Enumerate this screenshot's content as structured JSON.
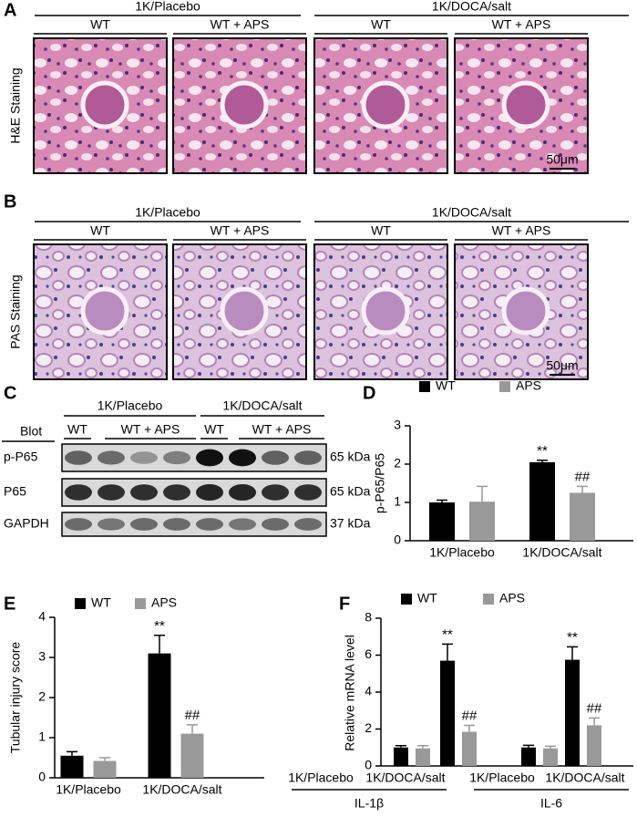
{
  "panel_labels": [
    "A",
    "B",
    "C",
    "D",
    "E",
    "F"
  ],
  "panel_a": {
    "groups": [
      "1K/Placebo",
      "1K/DOCA/salt"
    ],
    "columns": [
      "WT",
      "WT + APS",
      "WT",
      "WT + APS"
    ],
    "stain": "H&E Staining",
    "scale_bar": "50μm"
  },
  "panel_b": {
    "groups": [
      "1K/Placebo",
      "1K/DOCA/salt"
    ],
    "columns": [
      "WT",
      "WT + APS",
      "WT",
      "WT + APS"
    ],
    "stain": "PAS Staining",
    "scale_bar": "50μm"
  },
  "blot": {
    "groups": [
      "1K/Placebo",
      "1K/DOCA/salt"
    ],
    "header": "Blot",
    "lanes": [
      "WT",
      "WT + APS",
      "WT",
      "WT + APS"
    ],
    "rows": [
      {
        "name": "p-P65",
        "size": "65 kDa"
      },
      {
        "name": "P65",
        "size": "65 kDa"
      },
      {
        "name": "GAPDH",
        "size": "37 kDa"
      }
    ]
  },
  "chart_data": [
    {
      "type": "bar",
      "ylabel": "p-P65/P65",
      "categories": [
        "1K/Placebo",
        "1K/DOCA/salt"
      ],
      "series": [
        {
          "name": "WT",
          "color": "#000000",
          "values": [
            1.0,
            2.05
          ],
          "errors": [
            0.06,
            0.05
          ],
          "marks": [
            null,
            "**"
          ]
        },
        {
          "name": "APS",
          "color": "#999999",
          "values": [
            1.02,
            1.25
          ],
          "errors": [
            0.4,
            0.17
          ],
          "marks": [
            null,
            "##"
          ]
        }
      ],
      "ylim": [
        0,
        3
      ],
      "yticks": [
        0,
        1,
        2,
        3
      ]
    },
    {
      "type": "bar",
      "ylabel": "Tubular injury score",
      "categories": [
        "1K/Placebo",
        "1K/DOCA/salt"
      ],
      "series": [
        {
          "name": "WT",
          "color": "#000000",
          "values": [
            0.55,
            3.1
          ],
          "errors": [
            0.1,
            0.45
          ],
          "marks": [
            null,
            "**"
          ]
        },
        {
          "name": "APS",
          "color": "#999999",
          "values": [
            0.42,
            1.1
          ],
          "errors": [
            0.08,
            0.22
          ],
          "marks": [
            null,
            "##"
          ]
        }
      ],
      "ylim": [
        0,
        4
      ],
      "yticks": [
        0,
        1,
        2,
        3,
        4
      ]
    },
    {
      "type": "bar",
      "ylabel": "Relative mRNA level",
      "categories": [
        "1K/Placebo",
        "1K/DOCA/salt",
        "1K/Placebo",
        "1K/DOCA/salt"
      ],
      "groups": [
        "IL-1β",
        "IL-6"
      ],
      "series": [
        {
          "name": "WT",
          "color": "#000000",
          "values": [
            1.0,
            5.7,
            1.0,
            5.75
          ],
          "errors": [
            0.1,
            0.9,
            0.12,
            0.7
          ],
          "marks": [
            null,
            "**",
            null,
            "**"
          ]
        },
        {
          "name": "APS",
          "color": "#999999",
          "values": [
            0.95,
            1.85,
            0.95,
            2.2
          ],
          "errors": [
            0.15,
            0.35,
            0.12,
            0.4
          ],
          "marks": [
            null,
            "##",
            null,
            "##"
          ]
        }
      ],
      "ylim": [
        0,
        8
      ],
      "yticks": [
        0,
        2,
        4,
        6,
        8
      ]
    }
  ]
}
